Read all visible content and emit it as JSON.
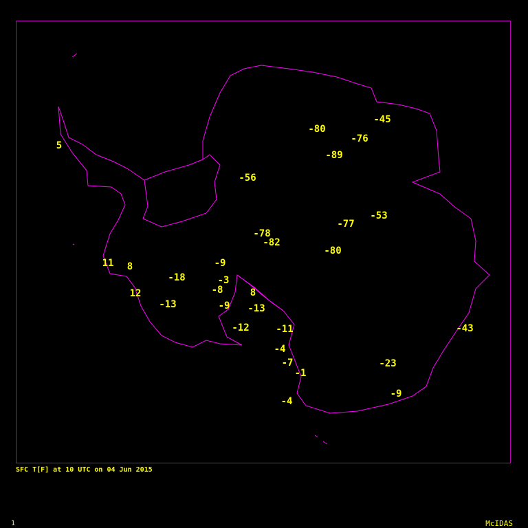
{
  "caption": "SFC T[F] at 10 UTC on 04 Jun 2015",
  "frame_number": "1",
  "brand": "McIDAS",
  "colors": {
    "coastline": "#ff00ff",
    "frame": "#c000c0",
    "text": "#ffff00",
    "background": "#000000"
  },
  "stations": [
    "5",
    "-80",
    "-45",
    "-76",
    "-89",
    "-56",
    "-53",
    "-77",
    "-78",
    "-82",
    "-80",
    "11",
    "8",
    "-9",
    "-18",
    "-3",
    "-8",
    "8",
    "12",
    "-13",
    "-9",
    "-13",
    "-12",
    "-11",
    "-43",
    "-4",
    "-7",
    "-23",
    "-1",
    "-9",
    "-4"
  ]
}
